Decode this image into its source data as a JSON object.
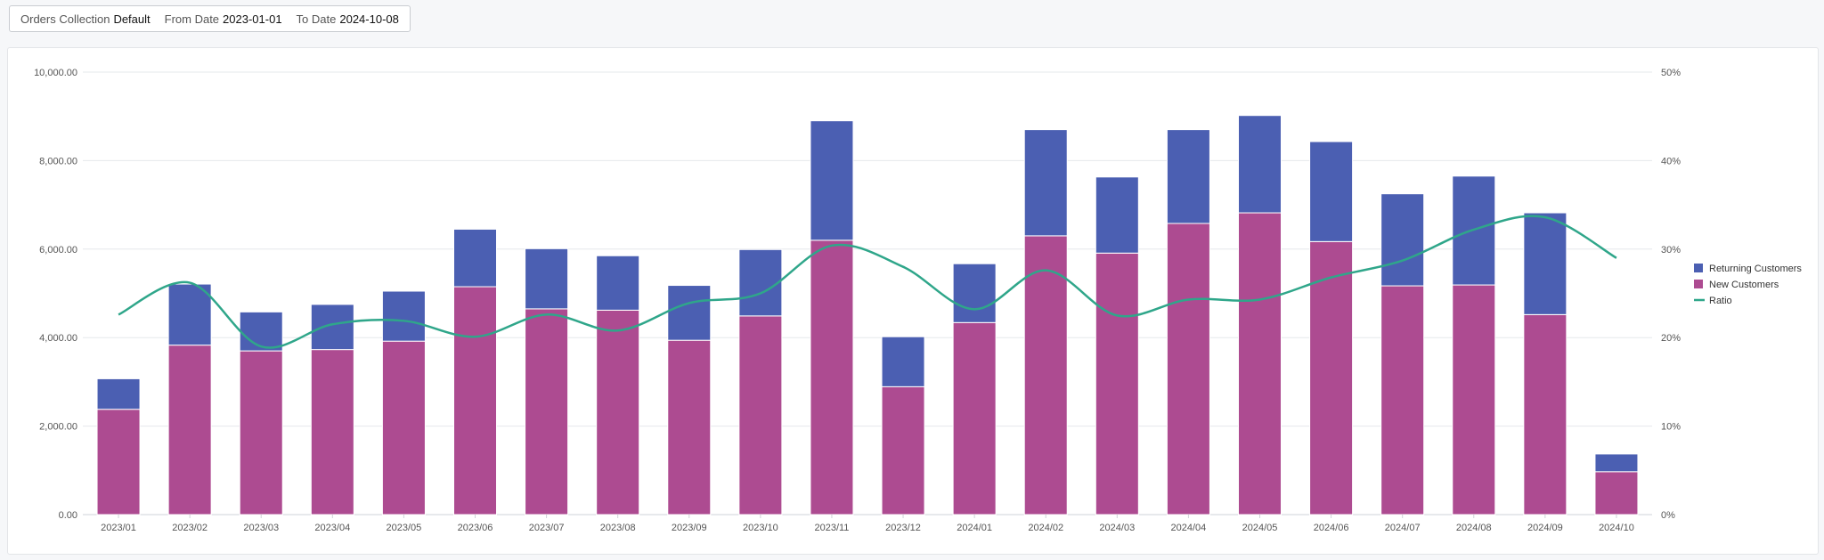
{
  "filters": {
    "collection_label": "Orders Collection",
    "collection_value": "Default",
    "from_label": "From Date",
    "from_value": "2023-01-01",
    "to_label": "To Date",
    "to_value": "2024-10-08"
  },
  "chart_data": {
    "type": "bar",
    "stacked": true,
    "categories": [
      "2023/01",
      "2023/02",
      "2023/03",
      "2023/04",
      "2023/05",
      "2023/06",
      "2023/07",
      "2023/08",
      "2023/09",
      "2023/10",
      "2023/11",
      "2023/12",
      "2024/01",
      "2024/02",
      "2024/03",
      "2024/04",
      "2024/05",
      "2024/06",
      "2024/07",
      "2024/08",
      "2024/09",
      "2024/10"
    ],
    "series": [
      {
        "name": "New Customers",
        "color": "#ad4b91",
        "axis": "left",
        "values": [
          2380,
          3830,
          3700,
          3730,
          3920,
          5150,
          4650,
          4620,
          3940,
          4490,
          6200,
          2890,
          4340,
          6300,
          5910,
          6580,
          6820,
          6170,
          5170,
          5190,
          4520,
          970
        ]
      },
      {
        "name": "Returning Customers",
        "color": "#4b5fb2",
        "axis": "left",
        "values": [
          690,
          1380,
          880,
          1020,
          1130,
          1300,
          1360,
          1230,
          1240,
          1500,
          2700,
          1130,
          1330,
          2400,
          1720,
          2120,
          2200,
          2260,
          2080,
          2460,
          2300,
          400
        ]
      },
      {
        "name": "Ratio",
        "color": "#2fa68a",
        "axis": "right",
        "type": "line",
        "values": [
          22.6,
          26.2,
          19.0,
          21.5,
          21.9,
          20.1,
          22.6,
          20.8,
          23.9,
          25.0,
          30.4,
          28.0,
          23.2,
          27.6,
          22.5,
          24.3,
          24.3,
          26.8,
          28.7,
          32.2,
          33.6,
          29.0
        ]
      }
    ],
    "ylim": [
      0,
      10000
    ],
    "yticks": [
      "0.00",
      "2,000.00",
      "4,000.00",
      "6,000.00",
      "8,000.00",
      "10,000.00"
    ],
    "y2lim": [
      0,
      50
    ],
    "y2ticks": [
      "0%",
      "10%",
      "20%",
      "30%",
      "40%",
      "50%"
    ],
    "grid": true,
    "legend_position": "right",
    "legend": [
      "Returning Customers",
      "New Customers",
      "Ratio"
    ]
  }
}
